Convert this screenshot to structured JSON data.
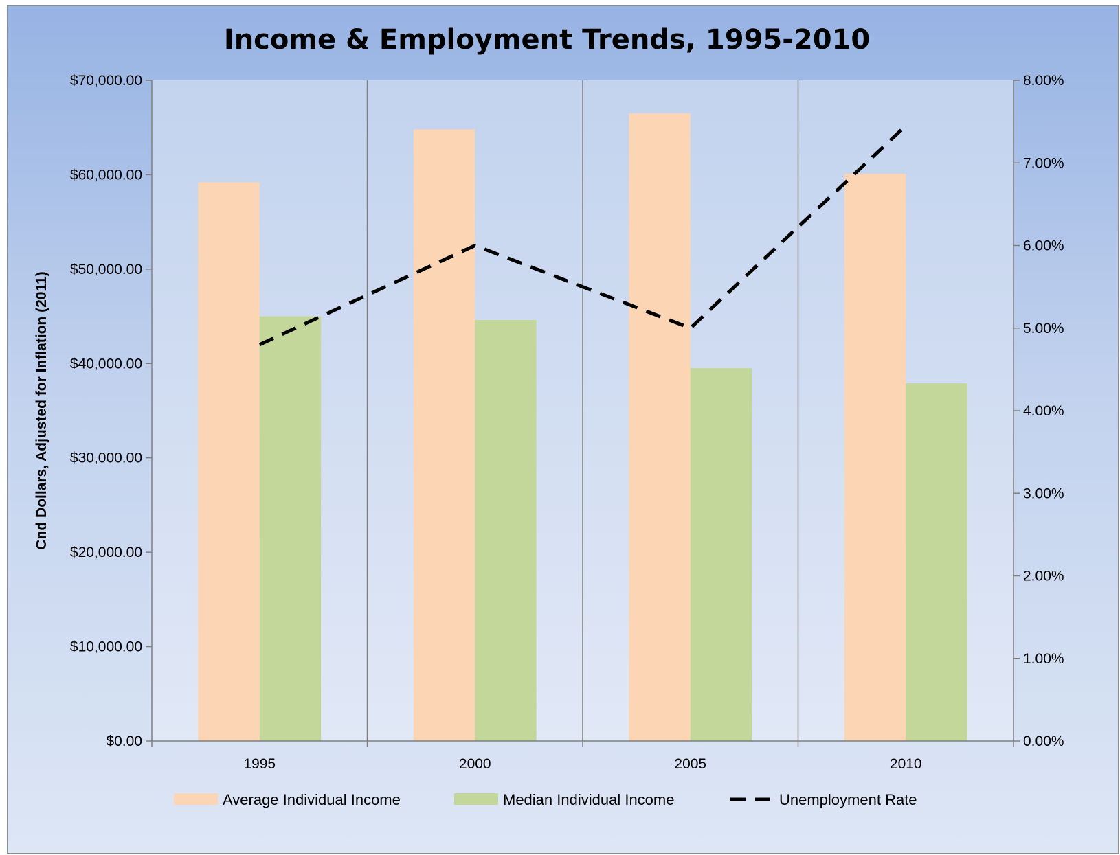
{
  "chart_data": {
    "type": "bar",
    "title": "Income & Employment Trends, 1995-2010",
    "xlabel": "",
    "ylabel": "Cnd Dollars, Adjusted for Inflation (2011)",
    "ylabel_right": "",
    "categories": [
      "1995",
      "2000",
      "2005",
      "2010"
    ],
    "series": [
      {
        "name": "Average Individual Income",
        "type": "bar",
        "axis": "left",
        "color": "#fcd5b4",
        "values": [
          59200,
          64800,
          66500,
          60100
        ]
      },
      {
        "name": "Median Individual Income",
        "type": "bar",
        "axis": "left",
        "color": "#c4d79b",
        "values": [
          45000,
          44600,
          39500,
          37900
        ]
      },
      {
        "name": "Unemployment Rate",
        "type": "line",
        "style": "dashed",
        "axis": "right",
        "color": "#000000",
        "values": [
          4.8,
          6.0,
          5.0,
          7.45
        ]
      }
    ],
    "ylim": [
      0,
      70000
    ],
    "ylim_right": [
      0,
      8
    ],
    "yticks": [
      "$0.00",
      "$10,000.00",
      "$20,000.00",
      "$30,000.00",
      "$40,000.00",
      "$50,000.00",
      "$60,000.00",
      "$70,000.00"
    ],
    "yticks_right": [
      "0.00%",
      "1.00%",
      "2.00%",
      "3.00%",
      "4.00%",
      "5.00%",
      "6.00%",
      "7.00%",
      "8.00%"
    ],
    "grid": "vertical category dividers",
    "legend_position": "bottom"
  }
}
